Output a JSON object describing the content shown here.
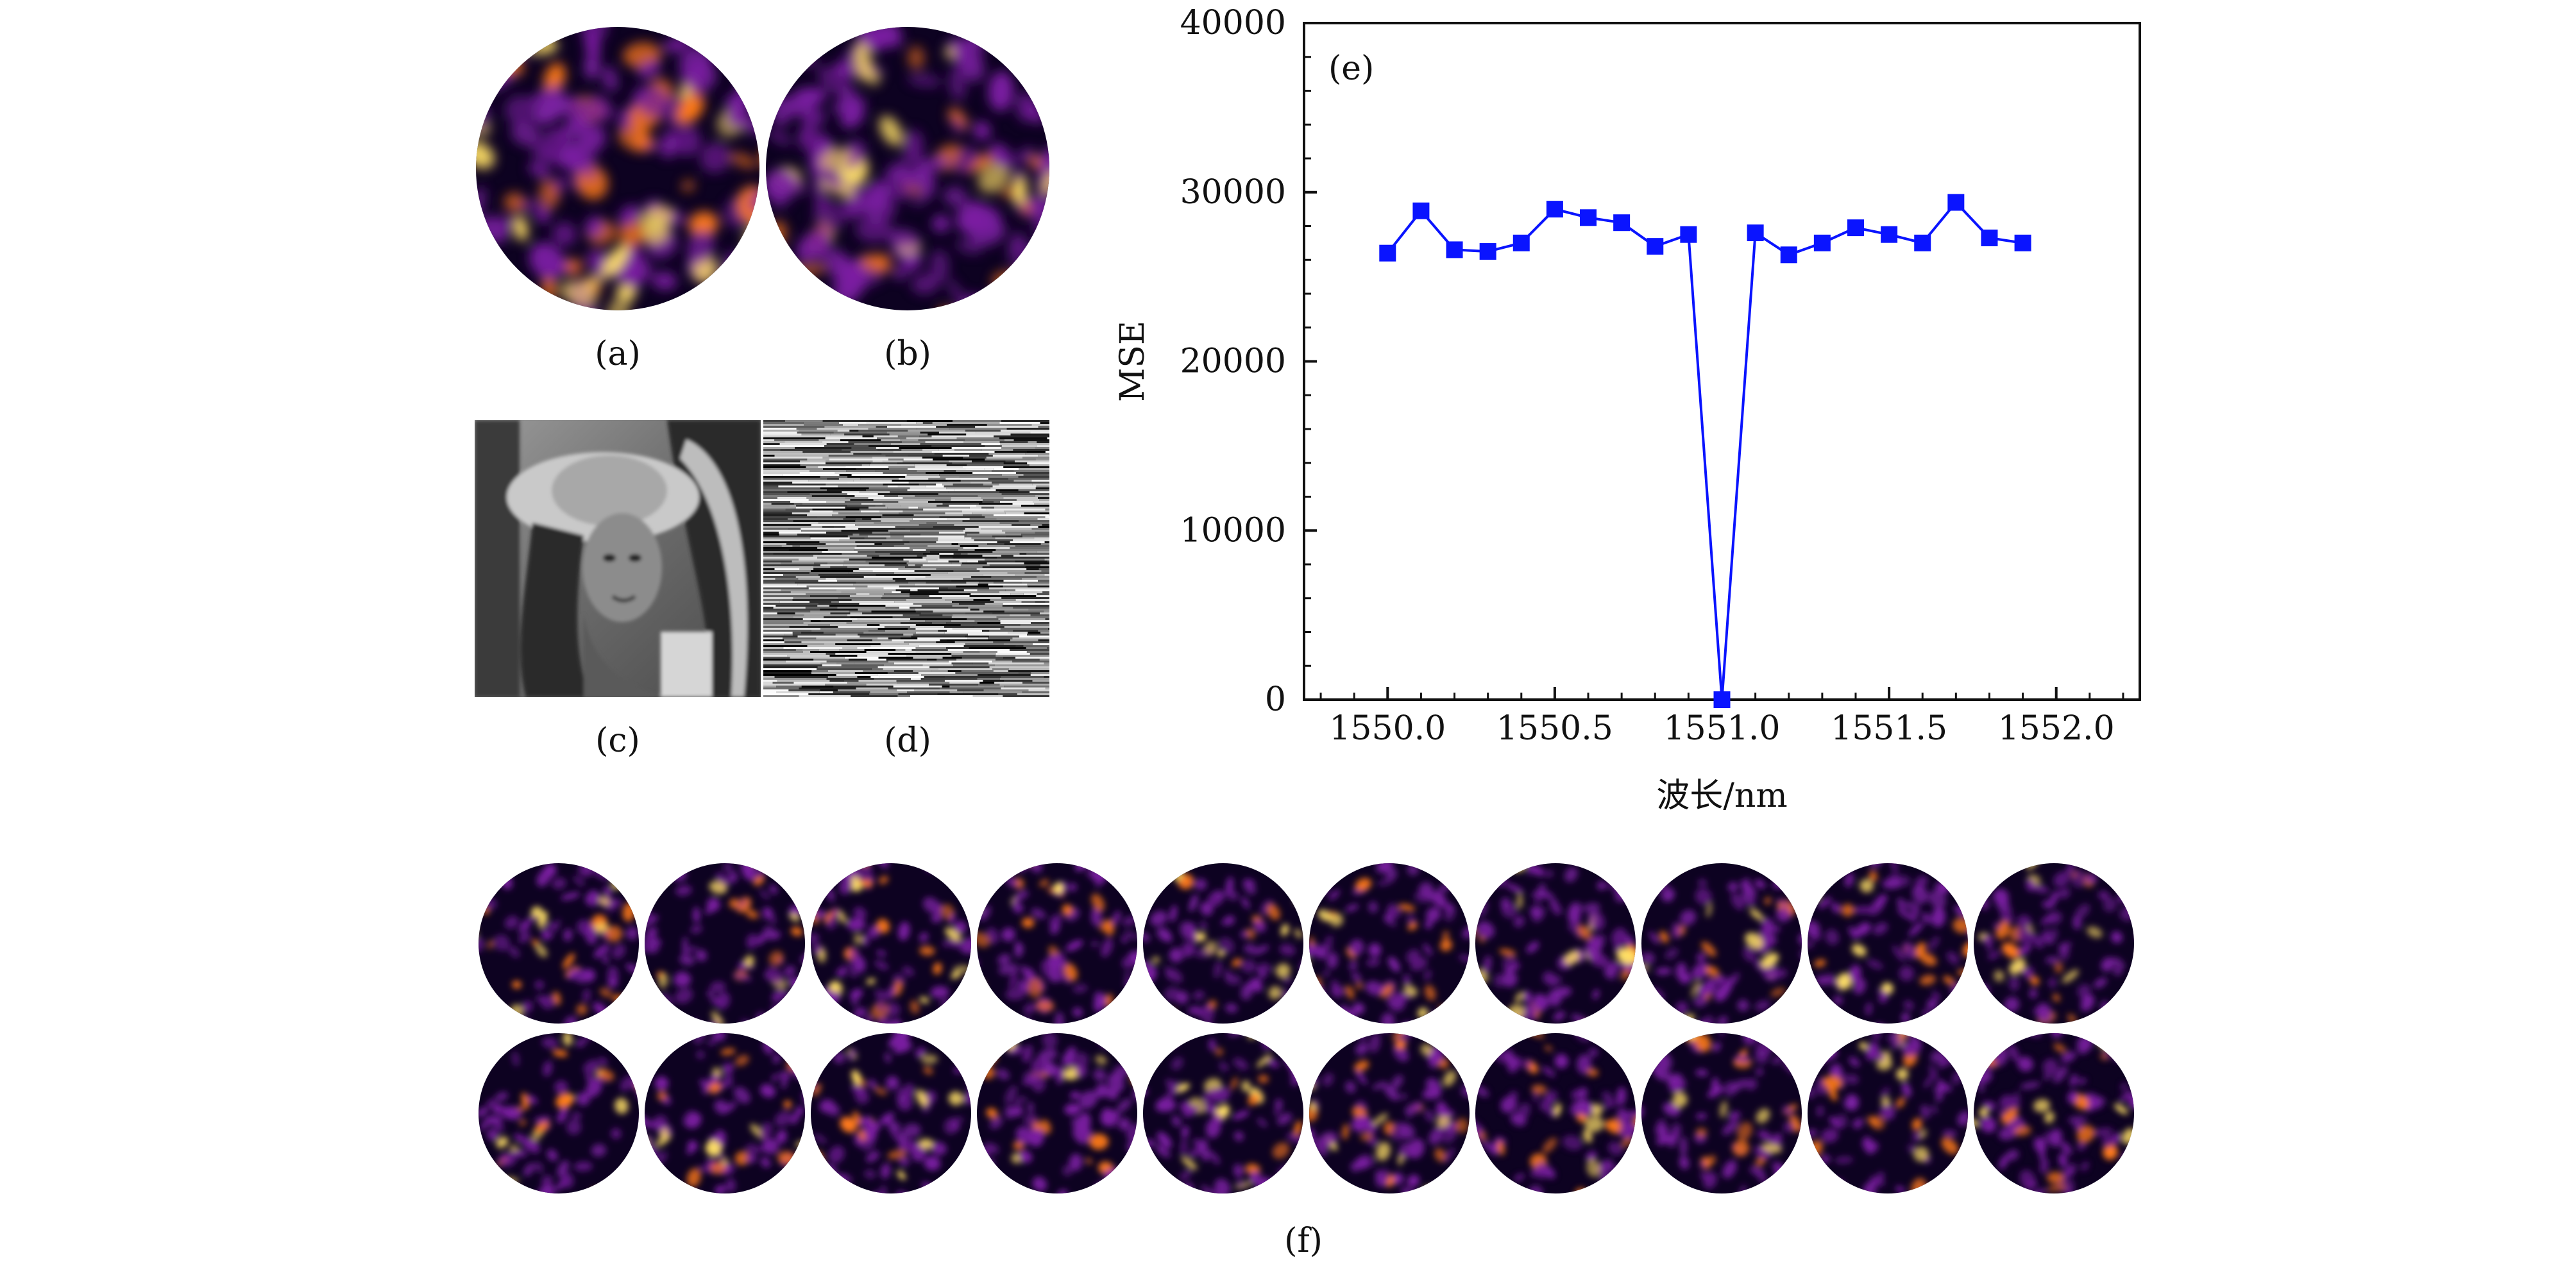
{
  "panels": {
    "a": "(a)",
    "b": "(b)",
    "c": "(c)",
    "d": "(d)",
    "e": "(e)",
    "f": "(f)"
  },
  "colors": {
    "series": "#0a14ff",
    "speckle_dark": "#0d0221",
    "speckle_mid": "#7b1fa2",
    "speckle_hot": "#ff7a1a",
    "speckle_peak": "#ffe066"
  },
  "chart_data": {
    "type": "line",
    "panel_label": "(e)",
    "xlabel": "波长/nm",
    "ylabel": "MSE",
    "xlim": [
      1549.75,
      1552.25
    ],
    "ylim": [
      0,
      40000
    ],
    "xticks": [
      "1550.0",
      "1550.5",
      "1551.0",
      "1551.5",
      "1552.0"
    ],
    "yticks": [
      "0",
      "10000",
      "20000",
      "30000",
      "40000"
    ],
    "grid": false,
    "marker": "square",
    "series": [
      {
        "x": [
          1550.0,
          1550.1,
          1550.2,
          1550.3,
          1550.4,
          1550.5,
          1550.6,
          1550.7,
          1550.8,
          1550.9,
          1551.0,
          1551.1,
          1551.2,
          1551.3,
          1551.4,
          1551.5,
          1551.6,
          1551.7,
          1551.8,
          1551.9
        ],
        "y": [
          26400,
          28900,
          26600,
          26500,
          27000,
          29000,
          28500,
          28200,
          26800,
          27500,
          0,
          27600,
          26300,
          27000,
          27900,
          27500,
          27000,
          29400,
          27300,
          27000
        ]
      }
    ]
  }
}
